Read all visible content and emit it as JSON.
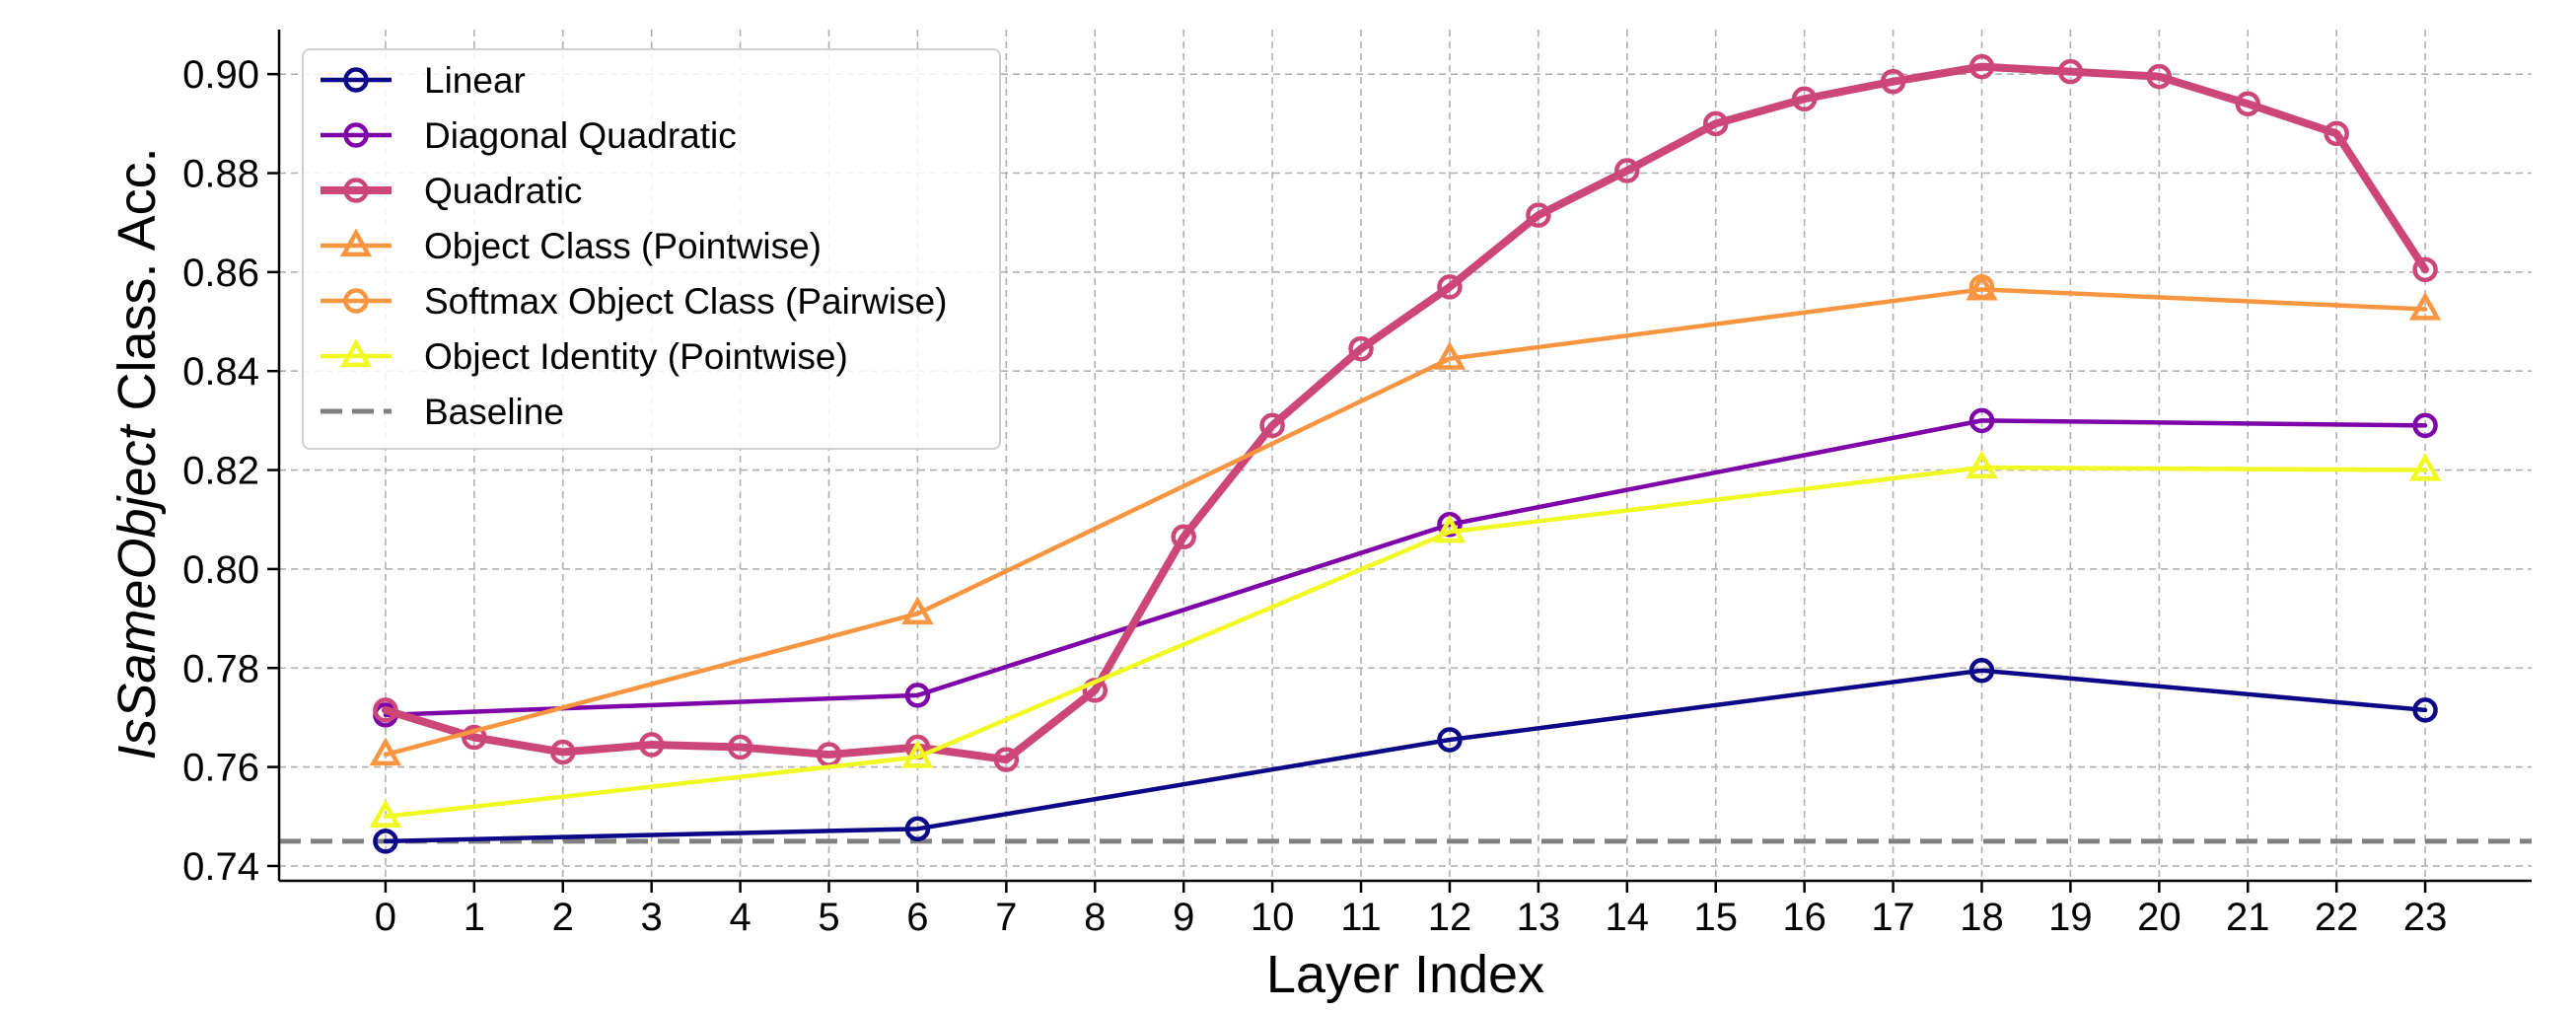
{
  "chart_data": {
    "type": "line",
    "xlabel": "Layer Index",
    "ylabel_italic": "IsSameObject",
    "ylabel_rest": " Class. Acc.",
    "xlim": [
      -1.2,
      24.2
    ],
    "ylim": [
      0.737,
      0.909
    ],
    "xticks": [
      0,
      1,
      2,
      3,
      4,
      5,
      6,
      7,
      8,
      9,
      10,
      11,
      12,
      13,
      14,
      15,
      16,
      17,
      18,
      19,
      20,
      21,
      22,
      23
    ],
    "yticks": [
      0.74,
      0.76,
      0.78,
      0.8,
      0.82,
      0.84,
      0.86,
      0.88,
      0.9
    ],
    "ytick_labels": [
      "0.74",
      "0.76",
      "0.78",
      "0.80",
      "0.82",
      "0.84",
      "0.86",
      "0.88",
      "0.90"
    ],
    "grid": true,
    "legend_position": "top-left",
    "series": [
      {
        "name": "Linear",
        "color": "#0d0887",
        "marker": "circle",
        "line_width": 4.5,
        "x": [
          0,
          6,
          12,
          18,
          23
        ],
        "y": [
          0.745,
          0.7475,
          0.7655,
          0.7795,
          0.7715
        ]
      },
      {
        "name": "Diagonal Quadratic",
        "color": "#7e03a8",
        "marker": "circle",
        "line_width": 4.5,
        "x": [
          0,
          6,
          12,
          18,
          23
        ],
        "y": [
          0.7705,
          0.7745,
          0.809,
          0.83,
          0.829
        ]
      },
      {
        "name": "Quadratic",
        "color": "#cc4778",
        "marker": "circle",
        "line_width": 8,
        "x": [
          0,
          1,
          2,
          3,
          4,
          5,
          6,
          7,
          8,
          9,
          10,
          11,
          12,
          13,
          14,
          15,
          16,
          17,
          18,
          19,
          20,
          21,
          22,
          23
        ],
        "y": [
          0.7715,
          0.766,
          0.763,
          0.7645,
          0.764,
          0.7625,
          0.764,
          0.7615,
          0.7755,
          0.8065,
          0.829,
          0.8445,
          0.857,
          0.8715,
          0.8805,
          0.89,
          0.895,
          0.8985,
          0.9015,
          0.9005,
          0.8995,
          0.894,
          0.888,
          0.8605
        ]
      },
      {
        "name": "Object Class (Pointwise)",
        "color": "#f89540",
        "marker": "triangle",
        "line_width": 4.5,
        "x": [
          0,
          6,
          12,
          18,
          23
        ],
        "y": [
          0.7625,
          0.791,
          0.8425,
          0.8565,
          0.8525
        ]
      },
      {
        "name": "Softmax Object Class (Pairwise)",
        "color": "#f89540",
        "marker": "circle",
        "line_width": 4.5,
        "x": [
          18
        ],
        "y": [
          0.857
        ]
      },
      {
        "name": "Object Identity (Pointwise)",
        "color": "#f0f921",
        "marker": "triangle",
        "line_width": 4.5,
        "x": [
          0,
          6,
          12,
          18,
          23
        ],
        "y": [
          0.75,
          0.762,
          0.8075,
          0.8205,
          0.82
        ]
      }
    ],
    "baseline": {
      "name": "Baseline",
      "color": "#808080",
      "y": 0.745
    }
  }
}
